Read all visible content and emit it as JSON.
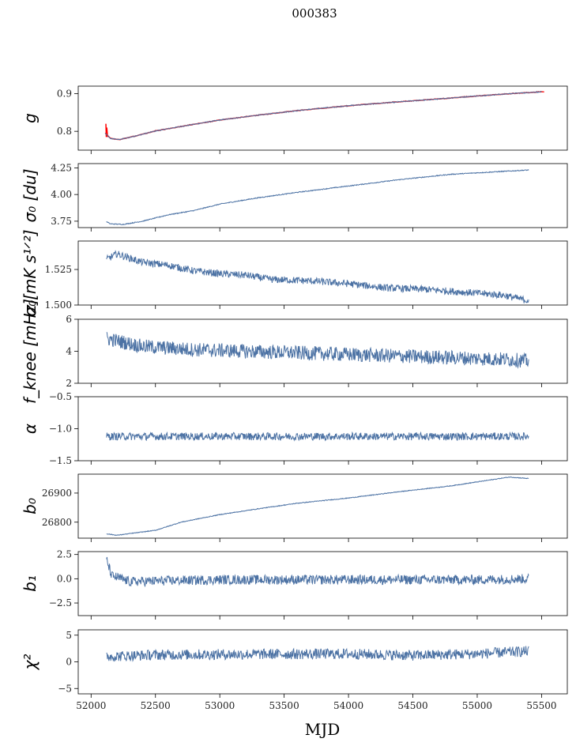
{
  "figure": {
    "title": "000383",
    "xlabel": "MJD"
  },
  "colors": {
    "series": "#4c72a4",
    "model": "#ff0000",
    "axes": "#000000"
  },
  "chart_data": [
    {
      "type": "line",
      "ylabel": "g",
      "xlim": [
        51900,
        55700
      ],
      "ylim": [
        0.75,
        0.92
      ],
      "yticks": [
        {
          "v": 0.8,
          "label": "0.8"
        },
        {
          "v": 0.9,
          "label": "0.9"
        }
      ],
      "points": [
        [
          52110,
          0.795
        ],
        [
          52150,
          0.781
        ],
        [
          52220,
          0.778
        ],
        [
          52350,
          0.788
        ],
        [
          52500,
          0.801
        ],
        [
          52700,
          0.813
        ],
        [
          53000,
          0.83
        ],
        [
          53300,
          0.843
        ],
        [
          53600,
          0.855
        ],
        [
          54000,
          0.868
        ],
        [
          54300,
          0.876
        ],
        [
          54700,
          0.886
        ],
        [
          55000,
          0.894
        ],
        [
          55300,
          0.901
        ],
        [
          55500,
          0.905
        ]
      ],
      "noise": 0.0015,
      "model": true
    },
    {
      "type": "line",
      "ylabel": "σ₀ [du]",
      "xlim": [
        51900,
        55700
      ],
      "ylim": [
        3.69,
        4.29
      ],
      "yticks": [
        {
          "v": 3.75,
          "label": "3.75"
        },
        {
          "v": 4.0,
          "label": "4.00"
        },
        {
          "v": 4.25,
          "label": "4.25"
        }
      ],
      "points": [
        [
          52120,
          3.745
        ],
        [
          52150,
          3.725
        ],
        [
          52250,
          3.72
        ],
        [
          52400,
          3.75
        ],
        [
          52600,
          3.81
        ],
        [
          52800,
          3.85
        ],
        [
          53000,
          3.91
        ],
        [
          53300,
          3.97
        ],
        [
          53600,
          4.02
        ],
        [
          54000,
          4.08
        ],
        [
          54400,
          4.14
        ],
        [
          54800,
          4.19
        ],
        [
          55100,
          4.21
        ],
        [
          55400,
          4.23
        ]
      ],
      "noise": 0.004
    },
    {
      "type": "line",
      "ylabel": "σ₀[mK s¹ᐟ²]",
      "xlim": [
        51900,
        55700
      ],
      "ylim": [
        1.5,
        1.545
      ],
      "yticks": [
        {
          "v": 1.5,
          "label": "1.500"
        },
        {
          "v": 1.525,
          "label": "1.525"
        }
      ],
      "points": [
        [
          52120,
          1.532
        ],
        [
          52200,
          1.536
        ],
        [
          52400,
          1.53
        ],
        [
          52600,
          1.528
        ],
        [
          52800,
          1.524
        ],
        [
          53000,
          1.522
        ],
        [
          53200,
          1.521
        ],
        [
          53400,
          1.518
        ],
        [
          53700,
          1.517
        ],
        [
          54000,
          1.515
        ],
        [
          54300,
          1.512
        ],
        [
          54600,
          1.511
        ],
        [
          54900,
          1.509
        ],
        [
          55200,
          1.507
        ],
        [
          55400,
          1.503
        ]
      ],
      "noise": 0.0025
    },
    {
      "type": "line",
      "ylabel": "f_knee [mHz]",
      "xlim": [
        51900,
        55700
      ],
      "ylim": [
        2,
        6
      ],
      "yticks": [
        {
          "v": 2,
          "label": "2"
        },
        {
          "v": 4,
          "label": "4"
        },
        {
          "v": 6,
          "label": "6"
        }
      ],
      "points": [
        [
          52120,
          4.8
        ],
        [
          52400,
          4.3
        ],
        [
          52800,
          4.1
        ],
        [
          53200,
          4.0
        ],
        [
          53600,
          3.9
        ],
        [
          54000,
          3.8
        ],
        [
          54400,
          3.7
        ],
        [
          54800,
          3.6
        ],
        [
          55200,
          3.5
        ],
        [
          55400,
          3.4
        ]
      ],
      "noise": 0.45
    },
    {
      "type": "line",
      "ylabel": "α",
      "xlim": [
        51900,
        55700
      ],
      "ylim": [
        -1.5,
        -0.5
      ],
      "yticks": [
        {
          "v": -1.5,
          "label": "−1.5"
        },
        {
          "v": -1.0,
          "label": "−1.0"
        },
        {
          "v": -0.5,
          "label": "−0.5"
        }
      ],
      "points": [
        [
          52120,
          -1.12
        ],
        [
          55400,
          -1.12
        ]
      ],
      "noise": 0.06
    },
    {
      "type": "line",
      "ylabel": "b₀",
      "xlim": [
        51900,
        55700
      ],
      "ylim": [
        26745,
        26965
      ],
      "yticks": [
        {
          "v": 26800,
          "label": "26800"
        },
        {
          "v": 26900,
          "label": "26900"
        }
      ],
      "points": [
        [
          52120,
          26760
        ],
        [
          52200,
          26755
        ],
        [
          52500,
          26772
        ],
        [
          52700,
          26800
        ],
        [
          53000,
          26826
        ],
        [
          53300,
          26846
        ],
        [
          53600,
          26865
        ],
        [
          54000,
          26883
        ],
        [
          54400,
          26905
        ],
        [
          54800,
          26925
        ],
        [
          55100,
          26945
        ],
        [
          55250,
          26955
        ],
        [
          55400,
          26950
        ]
      ],
      "noise": 1.2
    },
    {
      "type": "line",
      "ylabel": "b₁",
      "xlim": [
        51900,
        55700
      ],
      "ylim": [
        -3.8,
        2.8
      ],
      "yticks": [
        {
          "v": -2.5,
          "label": "−2.5"
        },
        {
          "v": 0.0,
          "label": "0.0"
        },
        {
          "v": 2.5,
          "label": "2.5"
        }
      ],
      "points": [
        [
          52120,
          2.0
        ],
        [
          52160,
          0.3
        ],
        [
          52300,
          -0.3
        ],
        [
          52600,
          -0.2
        ],
        [
          53000,
          -0.1
        ],
        [
          54000,
          -0.1
        ],
        [
          55000,
          -0.1
        ],
        [
          55400,
          0.0
        ]
      ],
      "noise": 0.5
    },
    {
      "type": "line",
      "ylabel": "χ²",
      "xlim": [
        51900,
        55700
      ],
      "ylim": [
        -6,
        6
      ],
      "yticks": [
        {
          "v": -5,
          "label": "−5"
        },
        {
          "v": 0,
          "label": "0"
        },
        {
          "v": 5,
          "label": "5"
        }
      ],
      "points": [
        [
          52120,
          1.0
        ],
        [
          52500,
          1.3
        ],
        [
          53000,
          1.4
        ],
        [
          54000,
          1.5
        ],
        [
          54500,
          1.2
        ],
        [
          55000,
          1.5
        ],
        [
          55400,
          2.0
        ]
      ],
      "noise": 1.0
    }
  ],
  "xticks": [
    {
      "v": 52000,
      "label": "52000"
    },
    {
      "v": 52500,
      "label": "52500"
    },
    {
      "v": 53000,
      "label": "53000"
    },
    {
      "v": 53500,
      "label": "53500"
    },
    {
      "v": 54000,
      "label": "54000"
    },
    {
      "v": 54500,
      "label": "54500"
    },
    {
      "v": 55000,
      "label": "55000"
    },
    {
      "v": 55500,
      "label": "55500"
    }
  ]
}
